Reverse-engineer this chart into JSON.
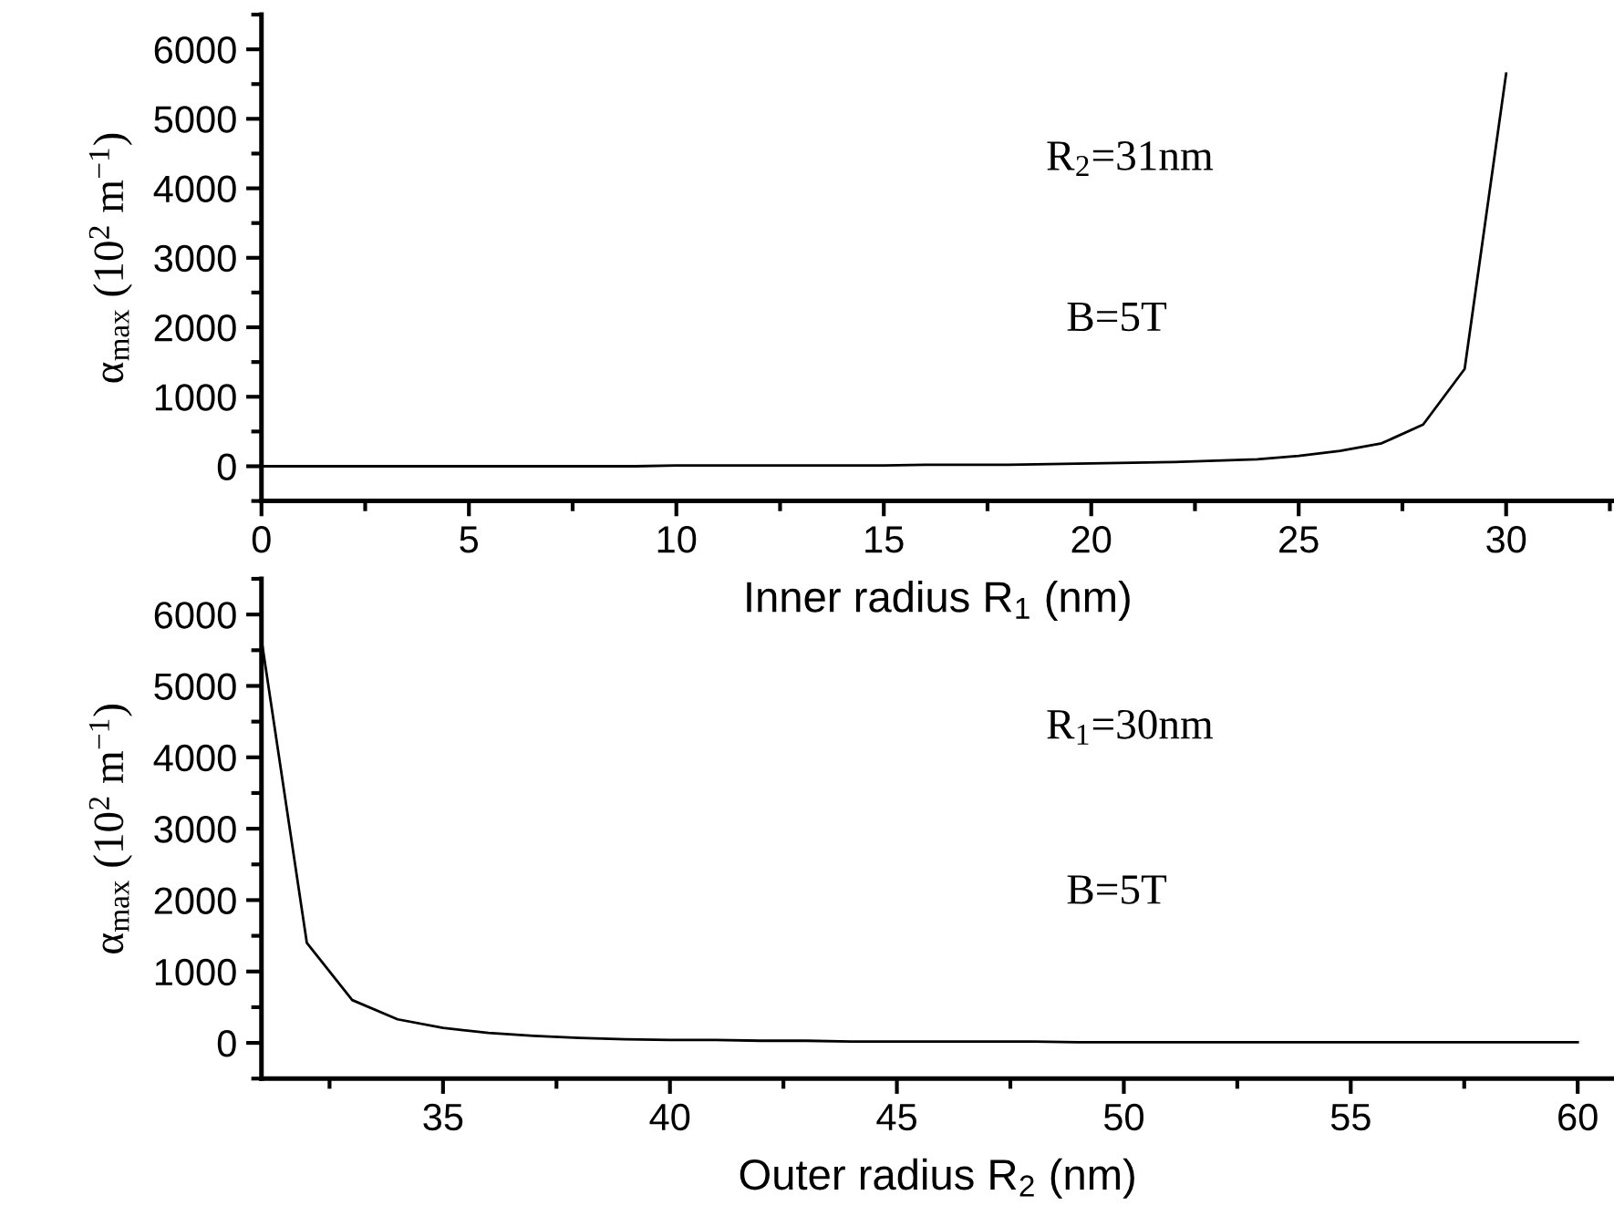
{
  "chart_data": [
    {
      "type": "line",
      "xlabel": "Inner radius R$_{1}$ (nm)",
      "ylabel": "α$_{max}$ (10$^{2}$ m$^{−1}$)",
      "annotations": [
        "R$_{2}$=31nm",
        "B=5T"
      ],
      "x": [
        0,
        1,
        2,
        3,
        4,
        5,
        6,
        7,
        8,
        9,
        10,
        11,
        12,
        13,
        14,
        15,
        16,
        17,
        18,
        19,
        20,
        21,
        22,
        23,
        24,
        25,
        26,
        27,
        28,
        29,
        30
      ],
      "series": [
        {
          "color": "#000000",
          "values": [
            0,
            0,
            0,
            0,
            0,
            0,
            0,
            0,
            0,
            0,
            10,
            10,
            10,
            10,
            10,
            10,
            20,
            20,
            20,
            30,
            40,
            50,
            60,
            80,
            100,
            150,
            220,
            330,
            600,
            1400,
            5650
          ]
        }
      ],
      "xlim": [
        0,
        32.6
      ],
      "ylim": [
        -500,
        6500
      ],
      "xticks": [
        0,
        5,
        10,
        15,
        20,
        25,
        30
      ],
      "yticks": [
        0,
        1000,
        2000,
        3000,
        4000,
        5000,
        6000
      ],
      "grid": false,
      "legend": false,
      "marker": "none",
      "line_style": "solid"
    },
    {
      "type": "line",
      "xlabel": "Outer radius R$_{2}$ (nm)",
      "ylabel": "α$_{max}$ (10$^{2}$ m$^{−1}$)",
      "annotations": [
        "R$_{1}$=30nm",
        "B=5T"
      ],
      "x": [
        31,
        32,
        33,
        34,
        35,
        36,
        37,
        38,
        39,
        40,
        41,
        42,
        43,
        44,
        45,
        46,
        47,
        48,
        49,
        50,
        51,
        52,
        53,
        54,
        55,
        56,
        57,
        58,
        59,
        60
      ],
      "series": [
        {
          "color": "#000000",
          "values": [
            5650,
            1400,
            600,
            330,
            210,
            140,
            100,
            70,
            50,
            40,
            40,
            30,
            30,
            20,
            20,
            20,
            20,
            20,
            10,
            10,
            10,
            10,
            10,
            10,
            10,
            10,
            10,
            10,
            10,
            10
          ]
        }
      ],
      "xlim": [
        31,
        60.8
      ],
      "ylim": [
        -500,
        6500
      ],
      "xticks": [
        35,
        40,
        45,
        50,
        55,
        60
      ],
      "yticks": [
        0,
        1000,
        2000,
        3000,
        4000,
        5000,
        6000
      ],
      "grid": false,
      "legend": false,
      "marker": "none",
      "line_style": "solid"
    }
  ]
}
